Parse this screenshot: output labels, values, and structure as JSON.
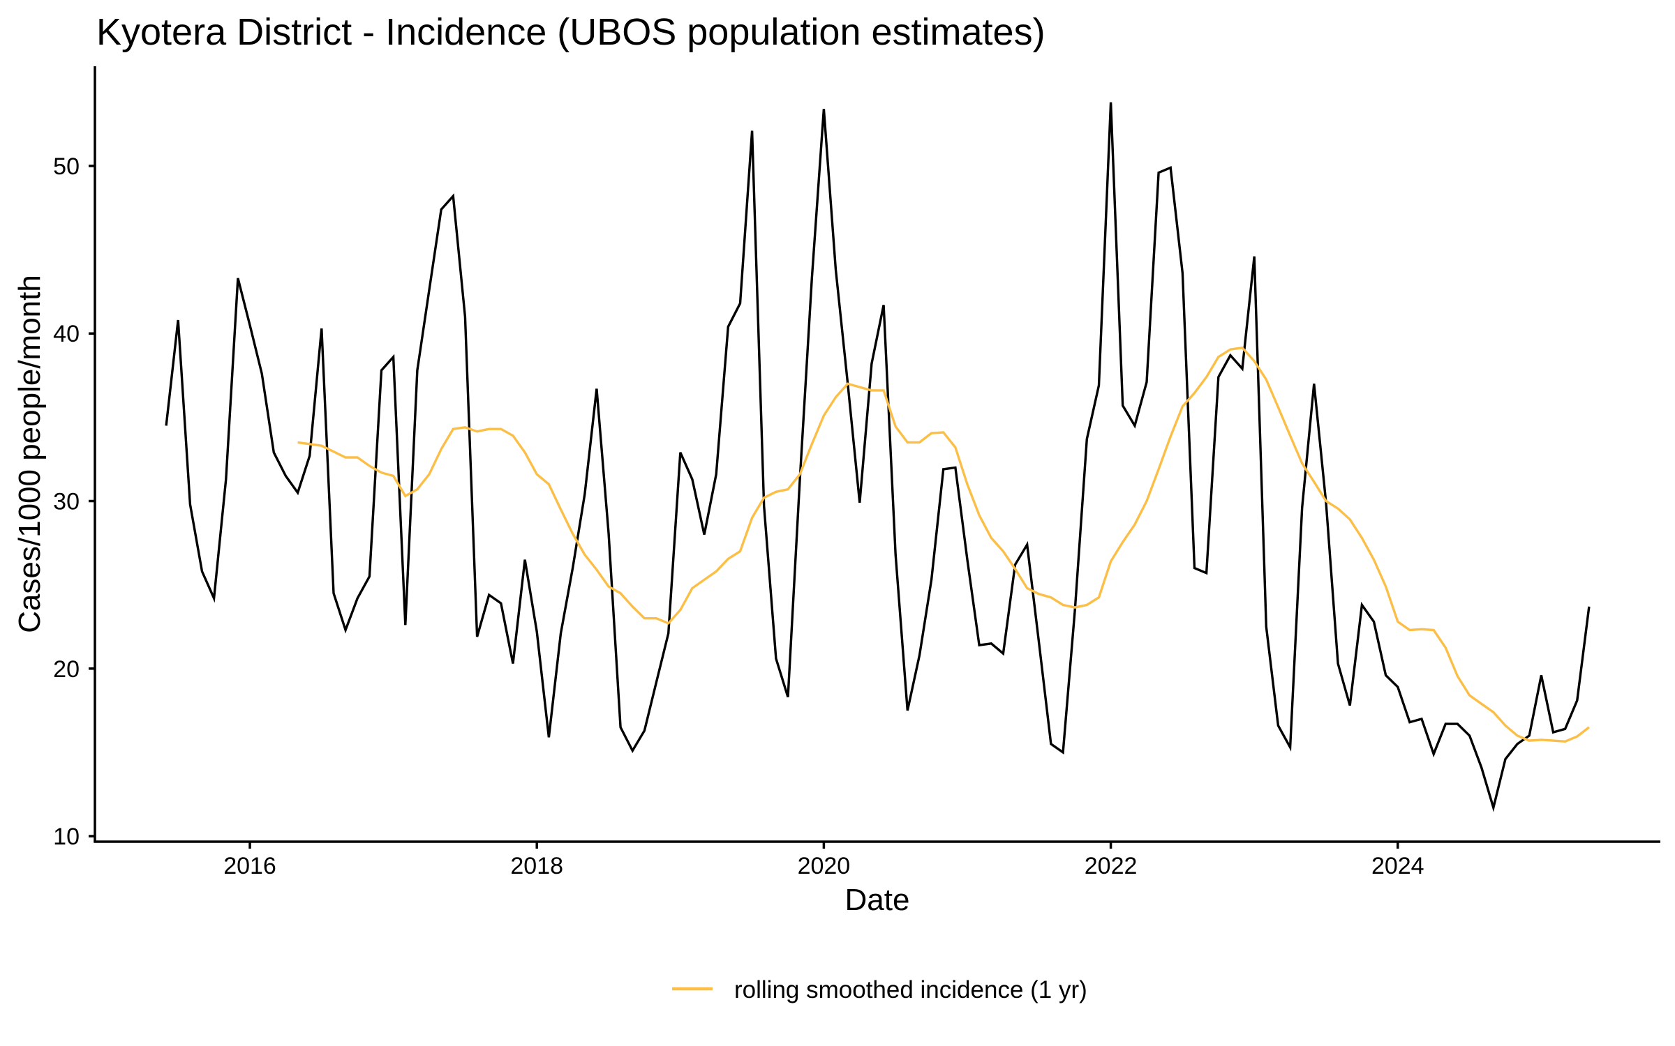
{
  "chart_data": {
    "type": "line",
    "title": "Kyotera District - Incidence (UBOS population estimates)",
    "xlabel": "Date",
    "ylabel": "Cases/1000 people/month",
    "xlim": [
      2014.92,
      2025.83
    ],
    "ylim": [
      9.67,
      55.95
    ],
    "grid": false,
    "x_ticks": [
      {
        "value": 2016,
        "label": "2016"
      },
      {
        "value": 2018,
        "label": "2018"
      },
      {
        "value": 2020,
        "label": "2020"
      },
      {
        "value": 2022,
        "label": "2022"
      },
      {
        "value": 2024,
        "label": "2024"
      }
    ],
    "y_ticks": [
      {
        "value": 10,
        "label": "10"
      },
      {
        "value": 20,
        "label": "20"
      },
      {
        "value": 30,
        "label": "30"
      },
      {
        "value": 40,
        "label": "40"
      },
      {
        "value": 50,
        "label": "50"
      }
    ],
    "legend_position": "bottom",
    "x_start": "2015-06",
    "series": [
      {
        "name": "incidence",
        "in_legend": false,
        "color": "#000000",
        "start": "2015-06",
        "values": [
          34.5,
          40.8,
          29.8,
          25.8,
          24.2,
          31.3,
          43.3,
          40.5,
          37.6,
          32.9,
          31.5,
          30.5,
          32.7,
          40.3,
          24.5,
          22.3,
          24.2,
          25.5,
          37.8,
          38.6,
          22.6,
          37.8,
          42.6,
          47.4,
          48.2,
          41.0,
          21.9,
          24.4,
          23.9,
          20.3,
          26.5,
          22.2,
          15.9,
          22.1,
          26.0,
          30.4,
          36.7,
          28.1,
          16.5,
          15.1,
          16.3,
          19.2,
          22.1,
          32.9,
          31.3,
          28.0,
          31.6,
          40.4,
          41.8,
          52.1,
          29.7,
          20.6,
          18.3,
          31.3,
          43.3,
          53.4,
          43.8,
          37.0,
          29.9,
          38.2,
          41.7,
          26.8,
          17.5,
          20.8,
          25.3,
          31.9,
          32.0,
          26.5,
          21.4,
          21.5,
          20.9,
          26.2,
          27.4,
          21.5,
          15.5,
          15.0,
          23.5,
          33.7,
          36.9,
          53.8,
          35.7,
          34.5,
          37.1,
          49.6,
          49.9,
          43.6,
          26.0,
          25.7,
          37.4,
          38.7,
          37.9,
          44.6,
          22.5,
          16.6,
          15.3,
          29.6,
          37.0,
          29.9,
          20.3,
          17.8,
          23.8,
          22.8,
          19.6,
          18.9,
          16.8,
          17.0,
          14.9,
          16.7,
          16.7,
          16.0,
          14.1,
          11.7,
          14.6,
          15.5,
          16.0,
          19.6,
          16.2,
          16.4,
          18.1,
          23.7
        ]
      },
      {
        "name": "rolling smoothed incidence (1 yr)",
        "in_legend": true,
        "color": "#FBBF47",
        "start": "2016-05",
        "values": [
          33.5,
          33.4,
          33.3,
          32.95,
          32.6,
          32.6,
          32.1,
          31.7,
          31.5,
          30.3,
          30.7,
          31.6,
          33.1,
          34.3,
          34.4,
          34.15,
          34.3,
          34.3,
          33.9,
          32.9,
          31.6,
          31.0,
          29.5,
          28.05,
          26.8,
          25.9,
          24.9,
          24.5,
          23.7,
          23.0,
          23.0,
          22.7,
          23.5,
          24.8,
          25.3,
          25.8,
          26.55,
          27.0,
          29.0,
          30.2,
          30.55,
          30.7,
          31.6,
          33.4,
          35.1,
          36.2,
          37.0,
          36.8,
          36.6,
          36.6,
          34.45,
          33.5,
          33.5,
          34.05,
          34.1,
          33.2,
          31.0,
          29.15,
          27.8,
          27.0,
          25.95,
          24.8,
          24.45,
          24.25,
          23.8,
          23.65,
          23.8,
          24.25,
          26.4,
          27.55,
          28.6,
          30.0,
          31.9,
          33.85,
          35.65,
          36.45,
          37.4,
          38.6,
          39.05,
          39.15,
          38.35,
          37.25,
          35.6,
          33.9,
          32.25,
          31.15,
          30.0,
          29.55,
          28.9,
          27.8,
          26.5,
          24.9,
          22.8,
          22.3,
          22.35,
          22.3,
          21.25,
          19.55,
          18.4,
          17.9,
          17.4,
          16.6,
          16.0,
          15.7,
          15.75,
          15.7,
          15.65,
          15.95,
          16.5
        ]
      }
    ]
  },
  "legend": {
    "items": [
      {
        "label": "rolling smoothed incidence (1 yr)",
        "color": "#FBBF47",
        "icon": "line-key-icon"
      }
    ]
  }
}
